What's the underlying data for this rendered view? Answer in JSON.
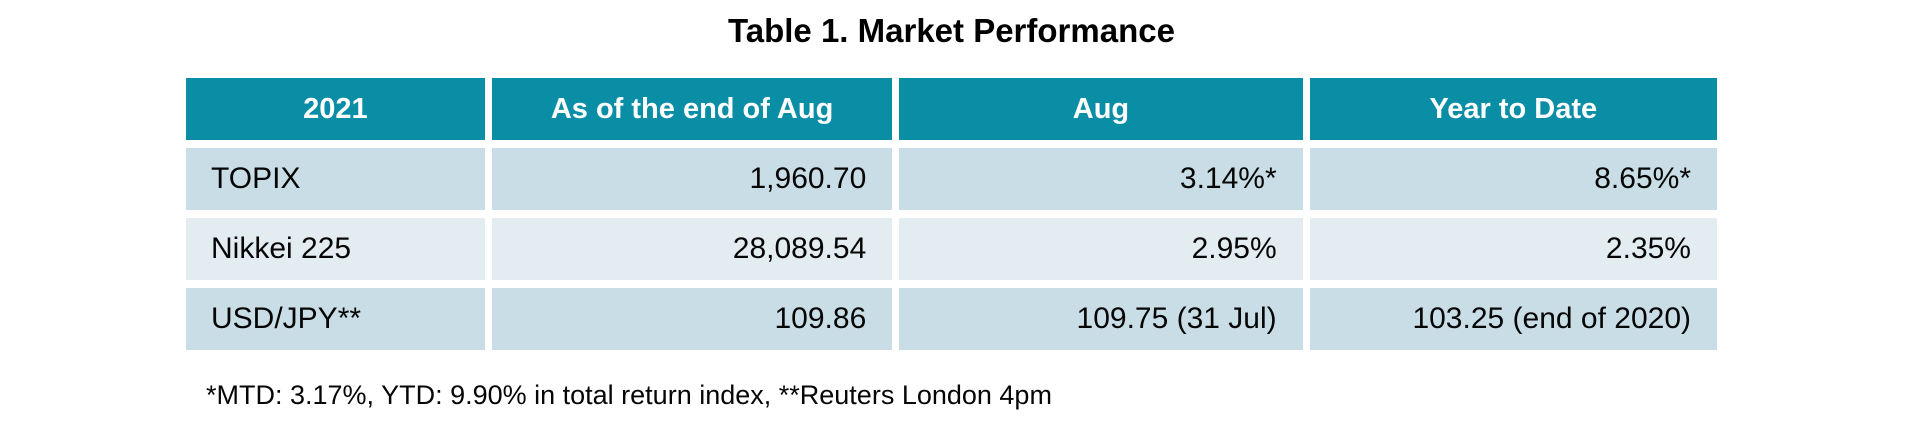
{
  "title": "Table 1. Market Performance",
  "footnote": "*MTD: 3.17%, YTD: 9.90% in total return index, **Reuters London 4pm",
  "colors": {
    "header_background": "#0a8ea6",
    "header_text": "#ffffff",
    "row_odd_background": "#c9dde6",
    "row_even_background": "#e2ecf1",
    "body_text": "#060606",
    "page_background": "#ffffff"
  },
  "chart_data": {
    "type": "table",
    "title": "Table 1. Market Performance",
    "columns": [
      "2021",
      "As of the end of Aug",
      "Aug",
      "Year to Date"
    ],
    "rows": [
      [
        "TOPIX",
        "1,960.70",
        "3.14%*",
        "8.65%*"
      ],
      [
        "Nikkei 225",
        "28,089.54",
        "2.95%",
        "2.35%"
      ],
      [
        "USD/JPY**",
        "109.86",
        "109.75 (31 Jul)",
        "103.25 (end of 2020)"
      ]
    ],
    "footnote": "*MTD: 3.17%, YTD: 9.90% in total return index, **Reuters London 4pm",
    "layout_hints": {
      "header_style": "teal background, white bold centered text",
      "first_column_align": "left",
      "value_columns_align": "right",
      "row_striping": "alternating light blue-gray / lighter blue-gray with white gaps"
    }
  }
}
